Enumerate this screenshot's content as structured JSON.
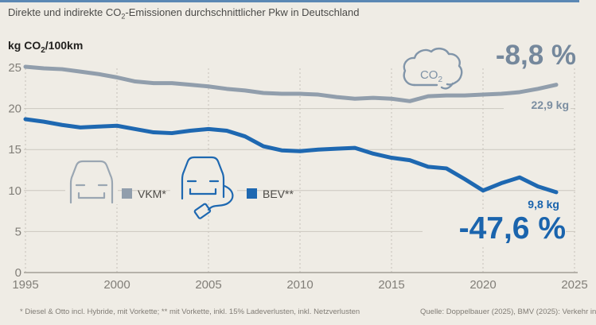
{
  "header": {
    "title_pre": "Direkte und indirekte CO",
    "title_sub": "2",
    "title_post": "-Emissionen durchschnittlicher Pkw in Deutschland"
  },
  "axis": {
    "y_unit_pre": "kg CO",
    "y_unit_sub": "2",
    "y_unit_post": "/100km"
  },
  "annotations": {
    "cloud_pre": "CO",
    "cloud_sub": "2"
  },
  "footer": {
    "note": "* Diesel & Otto incl. Hybride, mit Vorkette; ** mit Vorkette, inkl. 15% Ladeverlusten, inkl. Netzverlusten",
    "source": "Quelle: Doppelbauer (2025), BMV (2025): Verkehr in"
  },
  "colors": {
    "background": "#efece5",
    "top_strip": "#5b88b4",
    "vkm_line": "#919eac",
    "bev_line": "#1e68b1",
    "slate_annotation": "#75889c",
    "blue_annotation": "#1a64ad",
    "gridline": "#cbc7bf",
    "axis_line": "#a39f97",
    "dashed_line": "#c5c1b9",
    "tick_label": "#817e78"
  },
  "chart_data": {
    "type": "line",
    "title": "Direkte und indirekte CO2-Emissionen durchschnittlicher Pkw in Deutschland",
    "xlabel": "",
    "ylabel": "kg CO2/100km",
    "xlim": [
      1995,
      2025
    ],
    "ylim": [
      0,
      25
    ],
    "xticks": [
      1995,
      2000,
      2005,
      2010,
      2015,
      2020,
      2025
    ],
    "yticks": [
      0,
      5,
      10,
      15,
      20,
      25
    ],
    "grid": "horizontal solid at 5/10/15/20, vertical dashed at 5-year ticks",
    "legend_position": "inside-left-middle",
    "x": [
      1995,
      1996,
      1997,
      1998,
      1999,
      2000,
      2001,
      2002,
      2003,
      2004,
      2005,
      2006,
      2007,
      2008,
      2009,
      2010,
      2011,
      2012,
      2013,
      2014,
      2015,
      2016,
      2017,
      2018,
      2019,
      2020,
      2021,
      2022,
      2023,
      2024
    ],
    "series": [
      {
        "name": "VKM*",
        "color": "#919eac",
        "values": [
          25.1,
          24.9,
          24.8,
          24.5,
          24.2,
          23.8,
          23.3,
          23.1,
          23.1,
          22.9,
          22.7,
          22.4,
          22.2,
          21.9,
          21.8,
          21.8,
          21.7,
          21.4,
          21.2,
          21.3,
          21.2,
          20.9,
          21.5,
          21.6,
          21.6,
          21.7,
          21.8,
          22.0,
          22.4,
          22.9
        ],
        "change_label": "-8,8 %",
        "end_label": "22,9 kg"
      },
      {
        "name": "BEV**",
        "color": "#1e68b1",
        "values": [
          18.7,
          18.4,
          18.0,
          17.7,
          17.8,
          17.9,
          17.5,
          17.1,
          17.0,
          17.3,
          17.5,
          17.3,
          16.6,
          15.4,
          14.9,
          14.8,
          15.0,
          15.1,
          15.2,
          14.5,
          14.0,
          13.7,
          12.9,
          12.7,
          11.4,
          10.0,
          10.9,
          11.6,
          10.5,
          9.8
        ],
        "change_label": "-47,6 %",
        "end_label": "9,8 kg"
      }
    ]
  }
}
